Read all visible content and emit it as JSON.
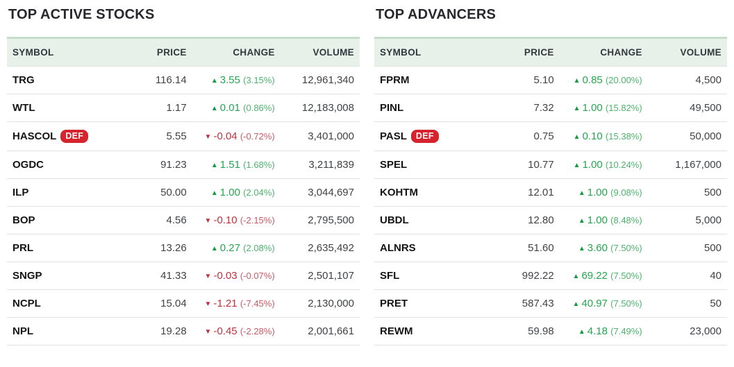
{
  "columns": [
    "SYMBOL",
    "PRICE",
    "CHANGE",
    "VOLUME"
  ],
  "colors": {
    "up_green": "#26a550",
    "up_green_light": "#4db36b",
    "up_arrow": "#149b41",
    "down_red": "#c0303e",
    "down_red_light": "#ca5a64",
    "header_bg": "#e7f1ea",
    "header_border": "#c6dccd",
    "badge_bg": "#d7232e",
    "badge_text": "#ffffff"
  },
  "icons": {
    "up_arrow": "▲",
    "down_arrow": "▼"
  },
  "tables": [
    {
      "title": "TOP ACTIVE STOCKS",
      "rows": [
        {
          "symbol": "TRG",
          "badge": null,
          "price": "116.14",
          "direction": "up",
          "change": "3.55",
          "change_pct": "(3.15%)",
          "volume": "12,961,340"
        },
        {
          "symbol": "WTL",
          "badge": null,
          "price": "1.17",
          "direction": "up",
          "change": "0.01",
          "change_pct": "(0.86%)",
          "volume": "12,183,008"
        },
        {
          "symbol": "HASCOL",
          "badge": "DEF",
          "price": "5.55",
          "direction": "down",
          "change": "-0.04",
          "change_pct": "(-0.72%)",
          "volume": "3,401,000"
        },
        {
          "symbol": "OGDC",
          "badge": null,
          "price": "91.23",
          "direction": "up",
          "change": "1.51",
          "change_pct": "(1.68%)",
          "volume": "3,211,839"
        },
        {
          "symbol": "ILP",
          "badge": null,
          "price": "50.00",
          "direction": "up",
          "change": "1.00",
          "change_pct": "(2.04%)",
          "volume": "3,044,697"
        },
        {
          "symbol": "BOP",
          "badge": null,
          "price": "4.56",
          "direction": "down",
          "change": "-0.10",
          "change_pct": "(-2.15%)",
          "volume": "2,795,500"
        },
        {
          "symbol": "PRL",
          "badge": null,
          "price": "13.26",
          "direction": "up",
          "change": "0.27",
          "change_pct": "(2.08%)",
          "volume": "2,635,492"
        },
        {
          "symbol": "SNGP",
          "badge": null,
          "price": "41.33",
          "direction": "down",
          "change": "-0.03",
          "change_pct": "(-0.07%)",
          "volume": "2,501,107"
        },
        {
          "symbol": "NCPL",
          "badge": null,
          "price": "15.04",
          "direction": "down",
          "change": "-1.21",
          "change_pct": "(-7.45%)",
          "volume": "2,130,000"
        },
        {
          "symbol": "NPL",
          "badge": null,
          "price": "19.28",
          "direction": "down",
          "change": "-0.45",
          "change_pct": "(-2.28%)",
          "volume": "2,001,661"
        }
      ]
    },
    {
      "title": "TOP ADVANCERS",
      "rows": [
        {
          "symbol": "FPRM",
          "badge": null,
          "price": "5.10",
          "direction": "up",
          "change": "0.85",
          "change_pct": "(20.00%)",
          "volume": "4,500"
        },
        {
          "symbol": "PINL",
          "badge": null,
          "price": "7.32",
          "direction": "up",
          "change": "1.00",
          "change_pct": "(15.82%)",
          "volume": "49,500"
        },
        {
          "symbol": "PASL",
          "badge": "DEF",
          "price": "0.75",
          "direction": "up",
          "change": "0.10",
          "change_pct": "(15.38%)",
          "volume": "50,000"
        },
        {
          "symbol": "SPEL",
          "badge": null,
          "price": "10.77",
          "direction": "up",
          "change": "1.00",
          "change_pct": "(10.24%)",
          "volume": "1,167,000"
        },
        {
          "symbol": "KOHTM",
          "badge": null,
          "price": "12.01",
          "direction": "up",
          "change": "1.00",
          "change_pct": "(9.08%)",
          "volume": "500"
        },
        {
          "symbol": "UBDL",
          "badge": null,
          "price": "12.80",
          "direction": "up",
          "change": "1.00",
          "change_pct": "(8.48%)",
          "volume": "5,000"
        },
        {
          "symbol": "ALNRS",
          "badge": null,
          "price": "51.60",
          "direction": "up",
          "change": "3.60",
          "change_pct": "(7.50%)",
          "volume": "500"
        },
        {
          "symbol": "SFL",
          "badge": null,
          "price": "992.22",
          "direction": "up",
          "change": "69.22",
          "change_pct": "(7.50%)",
          "volume": "40"
        },
        {
          "symbol": "PRET",
          "badge": null,
          "price": "587.43",
          "direction": "up",
          "change": "40.97",
          "change_pct": "(7.50%)",
          "volume": "50"
        },
        {
          "symbol": "REWM",
          "badge": null,
          "price": "59.98",
          "direction": "up",
          "change": "4.18",
          "change_pct": "(7.49%)",
          "volume": "23,000"
        }
      ]
    }
  ]
}
